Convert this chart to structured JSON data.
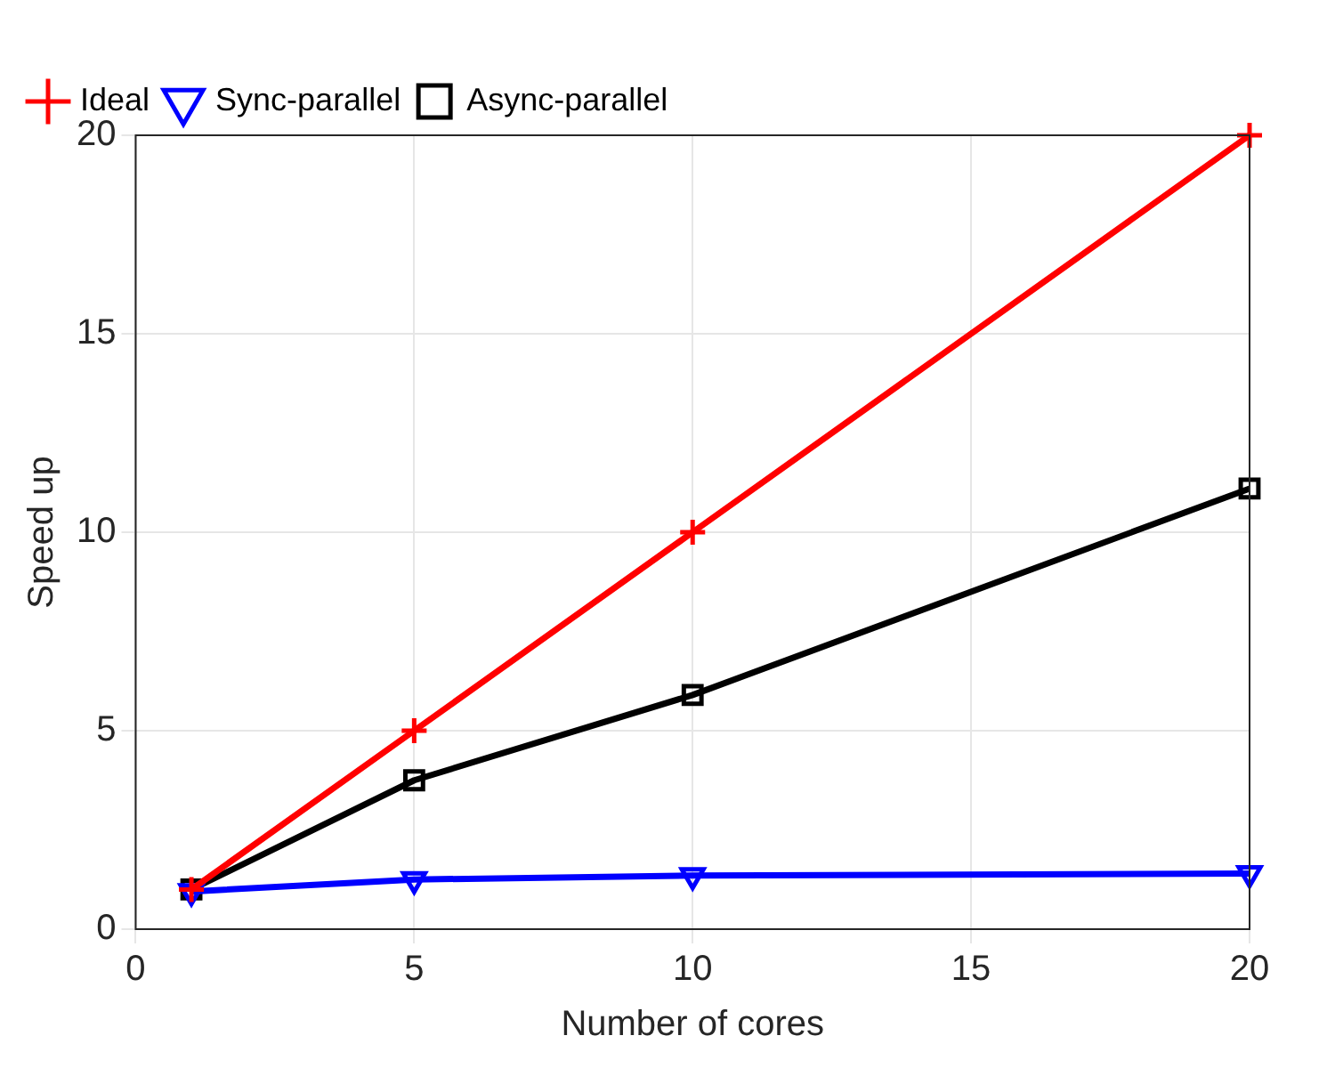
{
  "chart_data": {
    "type": "line",
    "xlabel": "Number of cores",
    "ylabel": "Speed up",
    "x": [
      1,
      5,
      10,
      20
    ],
    "series": [
      {
        "name": "Async-parallel",
        "color": "#000000",
        "marker": "square",
        "values": [
          1,
          3.75,
          5.9,
          11.1
        ]
      },
      {
        "name": "Sync-parallel",
        "color": "#0000ff",
        "marker": "triangle",
        "values": [
          0.95,
          1.25,
          1.35,
          1.4
        ]
      },
      {
        "name": "Ideal",
        "color": "#ff0000",
        "marker": "cross",
        "values": [
          1,
          5,
          10,
          20
        ]
      }
    ],
    "xlim": [
      0,
      20
    ],
    "xticks": [
      0,
      5,
      10,
      15,
      20
    ],
    "ylim": [
      0,
      20
    ],
    "yticks": [
      0,
      5,
      10,
      15,
      20
    ],
    "grid": true,
    "legend": "top left",
    "line_style": "solid"
  }
}
